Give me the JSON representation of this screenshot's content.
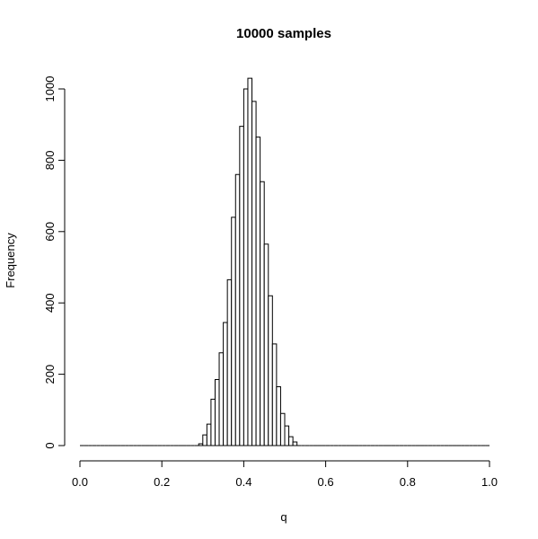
{
  "chart_data": {
    "type": "histogram",
    "title": "10000 samples",
    "x_label": "q",
    "y_label": "Frequency",
    "bins": [
      0,
      0.01,
      0.02,
      0.03,
      0.04,
      0.05,
      0.06,
      0.07,
      0.08,
      0.09,
      0.1,
      0.11,
      0.12,
      0.13,
      0.14,
      0.15,
      0.16,
      0.17,
      0.18,
      0.19,
      0.2,
      0.21,
      0.22,
      0.23,
      0.24,
      0.25,
      0.26,
      0.27,
      0.28,
      0.29,
      0.3,
      0.31,
      0.32,
      0.33,
      0.34,
      0.35,
      0.36,
      0.37,
      0.38,
      0.39,
      0.4,
      0.41,
      0.42,
      0.43,
      0.44,
      0.45,
      0.46,
      0.47,
      0.48,
      0.49,
      0.5,
      0.51,
      0.52,
      0.53,
      0.54,
      0.55,
      0.56,
      0.57,
      0.58,
      0.59,
      0.6,
      0.61,
      0.62,
      0.63,
      0.64,
      0.65,
      0.66,
      0.67,
      0.68,
      0.69,
      0.7,
      0.71,
      0.72,
      0.73,
      0.74,
      0.75,
      0.76,
      0.77,
      0.78,
      0.79,
      0.8,
      0.81,
      0.82,
      0.83,
      0.84,
      0.85,
      0.86,
      0.87,
      0.88,
      0.89,
      0.9,
      0.91,
      0.92,
      0.93,
      0.94,
      0.95,
      0.96,
      0.97,
      0.98,
      0.99,
      1
    ],
    "values": [
      0,
      0,
      0,
      0,
      0,
      0,
      0,
      0,
      0,
      0,
      0,
      0,
      0,
      0,
      0,
      0,
      0,
      0,
      0,
      0,
      0,
      0,
      0,
      0,
      0,
      0,
      0,
      0,
      0,
      5,
      30,
      60,
      130,
      185,
      260,
      345,
      465,
      640,
      760,
      895,
      1000,
      1030,
      965,
      865,
      740,
      565,
      420,
      285,
      165,
      90,
      55,
      25,
      10,
      0,
      0,
      0,
      0,
      0,
      0,
      0,
      0,
      0,
      0,
      0,
      0,
      0,
      0,
      0,
      0,
      0,
      0,
      0,
      0,
      0,
      0,
      0,
      0,
      0,
      0,
      0,
      0,
      0,
      0,
      0,
      0,
      0,
      0,
      0,
      0,
      0,
      0,
      0,
      0,
      0,
      0,
      0,
      0,
      0,
      0,
      0
    ],
    "color": "#ffffff",
    "edge_color": "#000000",
    "xlim": [
      0,
      1
    ],
    "xticks": [
      {
        "value": 0,
        "label": "0.0"
      },
      {
        "value": 0.2,
        "label": "0.2"
      },
      {
        "value": 0.4,
        "label": "0.4"
      },
      {
        "value": 0.6,
        "label": "0.6"
      },
      {
        "value": 0.8,
        "label": "0.8"
      },
      {
        "value": 1,
        "label": "1.0"
      }
    ],
    "ylim": [
      0,
      1000
    ],
    "yticks": [
      0,
      200,
      400,
      600,
      800,
      1000
    ]
  }
}
